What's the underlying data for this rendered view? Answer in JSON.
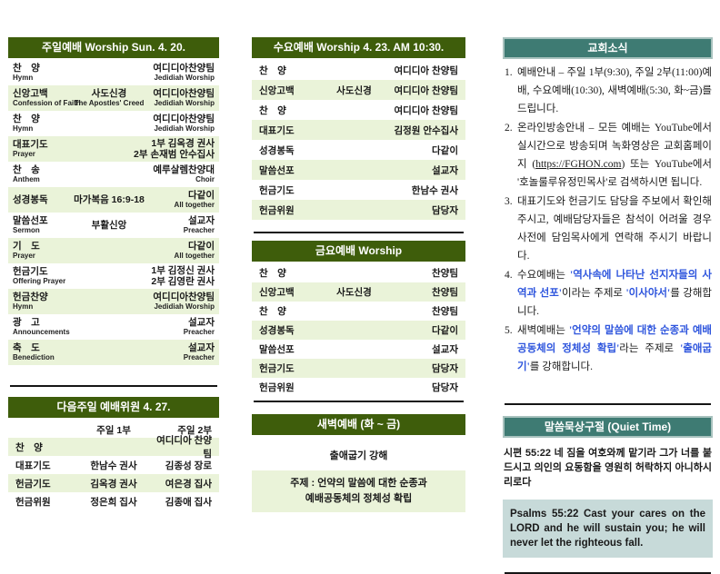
{
  "colors": {
    "header_green": "#3E5D0B",
    "row_green": "#EAF3D9",
    "header_teal": "#3E7B73",
    "verse_box": "#C7DAD9",
    "link_blue": "#2E55DD"
  },
  "sunday": {
    "title": "주일예배 Worship Sun. 4. 20.",
    "rows": [
      {
        "ko": "찬　양",
        "en": "Hymn",
        "center": "",
        "center_en": "",
        "right": [
          "여디디아찬양팀"
        ],
        "right_en": "Jedidiah Worship"
      },
      {
        "ko": "신앙고백",
        "en": "Confession of Faith",
        "center": "사도신경",
        "center_en": "The Apostles' Creed",
        "right": [
          "여디디아찬양팀"
        ],
        "right_en": "Jedidiah Worship"
      },
      {
        "ko": "찬　양",
        "en": "Hymn",
        "center": "",
        "center_en": "",
        "right": [
          "여디디아찬양팀"
        ],
        "right_en": "Jedidiah Worship"
      },
      {
        "ko": "대표기도",
        "en": "Prayer",
        "center": "",
        "center_en": "",
        "right": [
          "1부 김옥경 권사",
          "2부 손재범 안수집사"
        ],
        "right_en": ""
      },
      {
        "ko": "찬　송",
        "en": "Anthem",
        "center": "",
        "center_en": "",
        "right": [
          "예루살렘찬양대"
        ],
        "right_en": "Choir"
      },
      {
        "ko": "성경봉독",
        "en": "",
        "center": "마가복음 16:9-18",
        "center_en": "",
        "right": [
          "다같이"
        ],
        "right_en": "All together"
      },
      {
        "ko": "말씀선포",
        "en": "Sermon",
        "center": "부활신앙",
        "center_en": "",
        "right": [
          "설교자"
        ],
        "right_en": "Preacher"
      },
      {
        "ko": "기　도",
        "en": "Prayer",
        "center": "",
        "center_en": "",
        "right": [
          "다같이"
        ],
        "right_en": "All together"
      },
      {
        "ko": "헌금기도",
        "en": "Offering Prayer",
        "center": "",
        "center_en": "",
        "right": [
          "1부 김정신 권사",
          "2부 김영란 권사"
        ],
        "right_en": ""
      },
      {
        "ko": "헌금찬양",
        "en": "Hymn",
        "center": "",
        "center_en": "",
        "right": [
          "여디디아찬양팀"
        ],
        "right_en": "Jedidiah Worship"
      },
      {
        "ko": "광　고",
        "en": "Announcements",
        "center": "",
        "center_en": "",
        "right": [
          "설교자"
        ],
        "right_en": "Preacher"
      },
      {
        "ko": "축　도",
        "en": "Benediction",
        "center": "",
        "center_en": "",
        "right": [
          "설교자"
        ],
        "right_en": "Preacher"
      }
    ]
  },
  "next_week": {
    "title": "다음주일 예배위원  4. 27.",
    "col1": "주일 1부",
    "col2": "주일 2부",
    "rows": [
      {
        "label": "찬　양",
        "first": "",
        "second": "여디디아 찬양팀"
      },
      {
        "label": "대표기도",
        "first": "한남수 권사",
        "second": "김종성 장로"
      },
      {
        "label": "헌금기도",
        "first": "김옥경 권사",
        "second": "여은경 집사"
      },
      {
        "label": "헌금위원",
        "first": "정은희 집사",
        "second": "김종애 집사"
      }
    ]
  },
  "wednesday": {
    "title": "수요예배 Worship  4. 23. AM 10:30.",
    "rows": [
      {
        "label": "찬　양",
        "center": "",
        "right": "여디디아 찬양팀"
      },
      {
        "label": "신앙고백",
        "center": "사도신경",
        "right": "여디디아 찬양팀"
      },
      {
        "label": "찬　양",
        "center": "",
        "right": "여디디아 찬양팀"
      },
      {
        "label": "대표기도",
        "center": "",
        "right": "김정원 안수집사"
      },
      {
        "label": "성경봉독",
        "center": "",
        "right": "다같이"
      },
      {
        "label": "말씀선포",
        "center": "",
        "right": "설교자"
      },
      {
        "label": "헌금기도",
        "center": "",
        "right": "한남수 권사"
      },
      {
        "label": "헌금위원",
        "center": "",
        "right": "담당자"
      }
    ]
  },
  "friday": {
    "title": "금요예배 Worship",
    "rows": [
      {
        "label": "찬　양",
        "center": "",
        "right": "찬양팀"
      },
      {
        "label": "신앙고백",
        "center": "사도신경",
        "right": "찬양팀"
      },
      {
        "label": "찬　양",
        "center": "",
        "right": "찬양팀"
      },
      {
        "label": "성경봉독",
        "center": "",
        "right": "다같이"
      },
      {
        "label": "말씀선포",
        "center": "",
        "right": "설교자"
      },
      {
        "label": "헌금기도",
        "center": "",
        "right": "담당자"
      },
      {
        "label": "헌금위원",
        "center": "",
        "right": "담당자"
      }
    ]
  },
  "dawn": {
    "title": "새벽예배 (화 ~ 금)",
    "subtitle": "출애굽기 강해",
    "theme_lines": [
      "주제 : 언약의 말씀에 대한 순종과",
      "예배공동체의 정체성 확립"
    ]
  },
  "news": {
    "title": "교회소식",
    "items": [
      {
        "num": "1.",
        "segments": [
          {
            "t": "예배안내 – 주일 1부(9:30), 주일 2부(11:00)예배, 수요예배(10:30), 새벽예배(5:30, 화~금)를 드립니다.",
            "s": "n"
          }
        ]
      },
      {
        "num": "2.",
        "segments": [
          {
            "t": "온라인방송안내 – 모든 예배는 YouTube에서 실시간으로 방송되며 녹화영상은 교회홈페이지 (",
            "s": "n"
          },
          {
            "t": "https://FGHON.com",
            "s": "u"
          },
          {
            "t": ") 또는 YouTube에서 '호놀룰루유정민목사'로 검색하시면 됩니다.",
            "s": "n"
          }
        ]
      },
      {
        "num": "3.",
        "segments": [
          {
            "t": "대표기도와 헌금기도 담당을 주보에서 확인해 주시고, 예배담당자들은 참석이 어려울 경우 사전에 담임목사에게 연락해 주시기 바랍니다.",
            "s": "n"
          }
        ]
      },
      {
        "num": "4.",
        "segments": [
          {
            "t": "수요예배는 ",
            "s": "n"
          },
          {
            "t": "'역사속에 나타난 선지자들의 사역과 선포'",
            "s": "b"
          },
          {
            "t": "이라는 주제로 ",
            "s": "n"
          },
          {
            "t": "'이사야서'",
            "s": "b"
          },
          {
            "t": "를 강해합니다.",
            "s": "n"
          }
        ]
      },
      {
        "num": "5.",
        "segments": [
          {
            "t": "새벽예배는 ",
            "s": "n"
          },
          {
            "t": "'언약의 말씀에 대한 순종과 예배공동체의 정체성 확립'",
            "s": "b"
          },
          {
            "t": "라는 주제로 ",
            "s": "n"
          },
          {
            "t": "'출애굽기'",
            "s": "b"
          },
          {
            "t": "를 강해합니다.",
            "s": "n"
          }
        ]
      }
    ]
  },
  "quiet_time": {
    "title": "말씀묵상구절 (Quiet Time)",
    "korean": "시편 55:22 네 짐을 여호와께 맡기라 그가 너를 붙드시고 의인의 요동함을 영원히 허락하지 아니하시리로다",
    "english": "Psalms 55:22 Cast your cares on the LORD and he will sustain you; he will never let the righteous fall."
  }
}
